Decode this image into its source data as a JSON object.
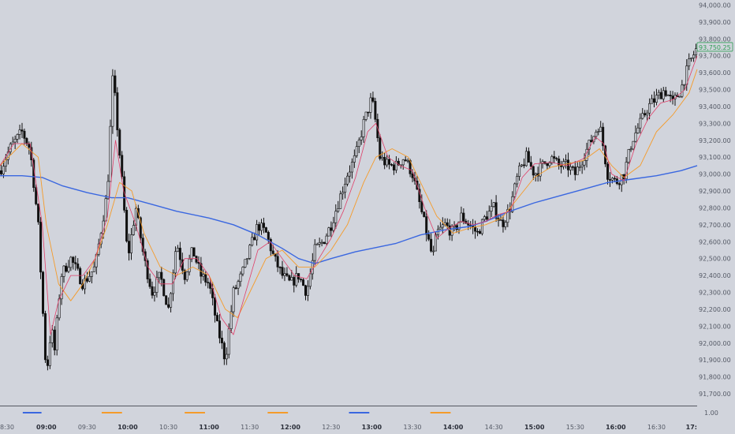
{
  "chart_data": {
    "type": "candlestick",
    "title": "",
    "xlabel": "",
    "ylabel": "",
    "ylim": [
      91630,
      94030
    ],
    "grid": false,
    "legend": "none",
    "price_ticks": [
      "94,000.00",
      "93,900.00",
      "93,800.00",
      "93,700.00",
      "93,600.00",
      "93,500.00",
      "93,400.00",
      "93,300.00",
      "93,200.00",
      "93,100.00",
      "93,000.00",
      "92,900.00",
      "92,800.00",
      "92,700.00",
      "92,600.00",
      "92,500.00",
      "92,400.00",
      "92,300.00",
      "92,200.00",
      "92,100.00",
      "92,000.00",
      "91,900.00",
      "91,800.00",
      "91,700.00"
    ],
    "price_tick_values": [
      94000,
      93900,
      93800,
      93700,
      93600,
      93500,
      93400,
      93300,
      93200,
      93100,
      93000,
      92900,
      92800,
      92700,
      92600,
      92500,
      92400,
      92300,
      92200,
      92100,
      92000,
      91900,
      91800,
      91700
    ],
    "current_price_label": "93,750.25",
    "current_price": 93750.25,
    "time_ticks": [
      {
        "label": "8:30",
        "bold": false
      },
      {
        "label": "09:00",
        "bold": true
      },
      {
        "label": "09:30",
        "bold": false
      },
      {
        "label": "10:00",
        "bold": true
      },
      {
        "label": "10:30",
        "bold": false
      },
      {
        "label": "11:00",
        "bold": true
      },
      {
        "label": "11:30",
        "bold": false
      },
      {
        "label": "12:00",
        "bold": true
      },
      {
        "label": "12:30",
        "bold": false
      },
      {
        "label": "13:00",
        "bold": true
      },
      {
        "label": "13:30",
        "bold": false
      },
      {
        "label": "14:00",
        "bold": true
      },
      {
        "label": "14:30",
        "bold": false
      },
      {
        "label": "15:00",
        "bold": true
      },
      {
        "label": "15:30",
        "bold": false
      },
      {
        "label": "16:00",
        "bold": true
      },
      {
        "label": "16:30",
        "bold": false
      },
      {
        "label": "17:",
        "bold": true
      }
    ],
    "time_tick_positions": [
      8.5,
      9.0,
      9.5,
      10.0,
      10.5,
      11.0,
      11.5,
      12.0,
      12.5,
      13.0,
      13.5,
      14.0,
      14.5,
      15.0,
      15.5,
      16.0,
      16.5,
      17.0
    ],
    "xlim": [
      8.43,
      17.0
    ],
    "secondary_axis_label": "1.00",
    "colors": {
      "background": "#d1d4dc",
      "candle_up": "#d1d4dc",
      "candle_down": "#111111",
      "candle_outline": "#111111",
      "slow_ma": "#3a67e0",
      "mid_ma": "#f59b2a",
      "fast_ma": "#e0406a",
      "price_label": "#2f9e54"
    },
    "indicator_marks": [
      {
        "from": 8.71,
        "to": 8.94,
        "color": "#3a67e0"
      },
      {
        "from": 9.68,
        "to": 9.93,
        "color": "#f59b2a"
      },
      {
        "from": 10.7,
        "to": 10.95,
        "color": "#f59b2a"
      },
      {
        "from": 11.72,
        "to": 11.97,
        "color": "#f59b2a"
      },
      {
        "from": 12.72,
        "to": 12.97,
        "color": "#3a67e0"
      },
      {
        "from": 13.72,
        "to": 13.97,
        "color": "#f59b2a"
      }
    ],
    "price_path": [
      [
        8.43,
        93020
      ],
      [
        8.55,
        93150
      ],
      [
        8.7,
        93250
      ],
      [
        8.8,
        93150
      ],
      [
        8.9,
        92700
      ],
      [
        9.0,
        91800
      ],
      [
        9.06,
        92100
      ],
      [
        9.1,
        91950
      ],
      [
        9.18,
        92400
      ],
      [
        9.3,
        92500
      ],
      [
        9.45,
        92350
      ],
      [
        9.6,
        92450
      ],
      [
        9.75,
        92900
      ],
      [
        9.82,
        93600
      ],
      [
        9.86,
        93350
      ],
      [
        9.94,
        92900
      ],
      [
        10.0,
        92500
      ],
      [
        10.1,
        92800
      ],
      [
        10.2,
        92500
      ],
      [
        10.3,
        92300
      ],
      [
        10.4,
        92400
      ],
      [
        10.5,
        92200
      ],
      [
        10.6,
        92600
      ],
      [
        10.7,
        92400
      ],
      [
        10.8,
        92550
      ],
      [
        10.9,
        92400
      ],
      [
        11.0,
        92350
      ],
      [
        11.1,
        92100
      ],
      [
        11.2,
        91900
      ],
      [
        11.3,
        92300
      ],
      [
        11.4,
        92400
      ],
      [
        11.5,
        92550
      ],
      [
        11.6,
        92700
      ],
      [
        11.7,
        92650
      ],
      [
        11.8,
        92500
      ],
      [
        11.9,
        92400
      ],
      [
        12.0,
        92350
      ],
      [
        12.1,
        92400
      ],
      [
        12.2,
        92300
      ],
      [
        12.3,
        92550
      ],
      [
        12.4,
        92600
      ],
      [
        12.5,
        92700
      ],
      [
        12.6,
        92850
      ],
      [
        12.7,
        93000
      ],
      [
        12.8,
        93100
      ],
      [
        12.9,
        93300
      ],
      [
        13.0,
        93450
      ],
      [
        13.05,
        93300
      ],
      [
        13.1,
        93100
      ],
      [
        13.2,
        93050
      ],
      [
        13.3,
        93050
      ],
      [
        13.4,
        93100
      ],
      [
        13.5,
        93000
      ],
      [
        13.55,
        92900
      ],
      [
        13.65,
        92700
      ],
      [
        13.75,
        92500
      ],
      [
        13.8,
        92650
      ],
      [
        13.9,
        92700
      ],
      [
        14.0,
        92650
      ],
      [
        14.1,
        92750
      ],
      [
        14.2,
        92700
      ],
      [
        14.3,
        92650
      ],
      [
        14.4,
        92750
      ],
      [
        14.5,
        92800
      ],
      [
        14.6,
        92700
      ],
      [
        14.7,
        92800
      ],
      [
        14.8,
        93000
      ],
      [
        14.9,
        93100
      ],
      [
        15.0,
        93000
      ],
      [
        15.1,
        93050
      ],
      [
        15.2,
        93100
      ],
      [
        15.3,
        93050
      ],
      [
        15.4,
        93050
      ],
      [
        15.5,
        93000
      ],
      [
        15.6,
        93100
      ],
      [
        15.7,
        93200
      ],
      [
        15.8,
        93300
      ],
      [
        15.85,
        93150
      ],
      [
        15.9,
        93000
      ],
      [
        16.0,
        92950
      ],
      [
        16.1,
        93000
      ],
      [
        16.2,
        93200
      ],
      [
        16.3,
        93300
      ],
      [
        16.4,
        93400
      ],
      [
        16.5,
        93450
      ],
      [
        16.6,
        93500
      ],
      [
        16.7,
        93420
      ],
      [
        16.8,
        93500
      ],
      [
        16.9,
        93650
      ],
      [
        17.0,
        93750
      ]
    ],
    "series": [
      {
        "name": "",
        "style": "slow",
        "points": [
          [
            8.43,
            92990
          ],
          [
            8.7,
            92990
          ],
          [
            8.95,
            92980
          ],
          [
            9.2,
            92930
          ],
          [
            9.5,
            92890
          ],
          [
            9.8,
            92860
          ],
          [
            10.0,
            92860
          ],
          [
            10.3,
            92820
          ],
          [
            10.6,
            92780
          ],
          [
            11.0,
            92740
          ],
          [
            11.3,
            92700
          ],
          [
            11.6,
            92640
          ],
          [
            11.9,
            92560
          ],
          [
            12.1,
            92500
          ],
          [
            12.3,
            92470
          ],
          [
            12.5,
            92500
          ],
          [
            12.8,
            92540
          ],
          [
            13.0,
            92560
          ],
          [
            13.3,
            92590
          ],
          [
            13.6,
            92640
          ],
          [
            13.9,
            92670
          ],
          [
            14.2,
            92690
          ],
          [
            14.4,
            92720
          ],
          [
            14.7,
            92780
          ],
          [
            15.0,
            92830
          ],
          [
            15.3,
            92870
          ],
          [
            15.6,
            92910
          ],
          [
            15.9,
            92950
          ],
          [
            16.2,
            92970
          ],
          [
            16.5,
            92990
          ],
          [
            16.8,
            93020
          ],
          [
            17.0,
            93050
          ]
        ]
      },
      {
        "name": "",
        "style": "mid",
        "points": [
          [
            8.43,
            93050
          ],
          [
            8.7,
            93180
          ],
          [
            8.9,
            93100
          ],
          [
            9.0,
            92700
          ],
          [
            9.15,
            92350
          ],
          [
            9.3,
            92250
          ],
          [
            9.45,
            92350
          ],
          [
            9.6,
            92500
          ],
          [
            9.75,
            92700
          ],
          [
            9.9,
            92950
          ],
          [
            10.05,
            92900
          ],
          [
            10.2,
            92650
          ],
          [
            10.4,
            92450
          ],
          [
            10.6,
            92400
          ],
          [
            10.8,
            92450
          ],
          [
            11.0,
            92400
          ],
          [
            11.2,
            92200
          ],
          [
            11.35,
            92150
          ],
          [
            11.5,
            92300
          ],
          [
            11.7,
            92500
          ],
          [
            11.9,
            92550
          ],
          [
            12.1,
            92450
          ],
          [
            12.3,
            92450
          ],
          [
            12.5,
            92550
          ],
          [
            12.7,
            92700
          ],
          [
            12.9,
            92950
          ],
          [
            13.05,
            93100
          ],
          [
            13.25,
            93150
          ],
          [
            13.45,
            93100
          ],
          [
            13.6,
            92950
          ],
          [
            13.8,
            92750
          ],
          [
            14.0,
            92650
          ],
          [
            14.2,
            92680
          ],
          [
            14.4,
            92700
          ],
          [
            14.6,
            92740
          ],
          [
            14.8,
            92860
          ],
          [
            15.0,
            92980
          ],
          [
            15.2,
            93040
          ],
          [
            15.4,
            93060
          ],
          [
            15.6,
            93080
          ],
          [
            15.8,
            93150
          ],
          [
            15.95,
            93050
          ],
          [
            16.1,
            92980
          ],
          [
            16.3,
            93050
          ],
          [
            16.5,
            93250
          ],
          [
            16.7,
            93350
          ],
          [
            16.9,
            93480
          ],
          [
            17.0,
            93620
          ]
        ]
      },
      {
        "name": "",
        "style": "fast",
        "points": [
          [
            8.43,
            93050
          ],
          [
            8.6,
            93180
          ],
          [
            8.8,
            93180
          ],
          [
            8.95,
            92700
          ],
          [
            9.05,
            92050
          ],
          [
            9.15,
            92250
          ],
          [
            9.3,
            92400
          ],
          [
            9.45,
            92400
          ],
          [
            9.6,
            92500
          ],
          [
            9.75,
            92750
          ],
          [
            9.85,
            93200
          ],
          [
            9.95,
            92900
          ],
          [
            10.1,
            92700
          ],
          [
            10.25,
            92450
          ],
          [
            10.4,
            92350
          ],
          [
            10.55,
            92350
          ],
          [
            10.7,
            92500
          ],
          [
            10.85,
            92500
          ],
          [
            11.0,
            92400
          ],
          [
            11.15,
            92150
          ],
          [
            11.3,
            92050
          ],
          [
            11.45,
            92300
          ],
          [
            11.6,
            92550
          ],
          [
            11.75,
            92600
          ],
          [
            11.9,
            92500
          ],
          [
            12.05,
            92400
          ],
          [
            12.2,
            92380
          ],
          [
            12.35,
            92500
          ],
          [
            12.5,
            92620
          ],
          [
            12.65,
            92780
          ],
          [
            12.8,
            92980
          ],
          [
            12.95,
            93250
          ],
          [
            13.05,
            93300
          ],
          [
            13.2,
            93100
          ],
          [
            13.35,
            93050
          ],
          [
            13.5,
            93020
          ],
          [
            13.65,
            92800
          ],
          [
            13.8,
            92620
          ],
          [
            13.95,
            92680
          ],
          [
            14.1,
            92720
          ],
          [
            14.25,
            92700
          ],
          [
            14.4,
            92720
          ],
          [
            14.55,
            92760
          ],
          [
            14.7,
            92780
          ],
          [
            14.85,
            92980
          ],
          [
            15.0,
            93060
          ],
          [
            15.2,
            93070
          ],
          [
            15.4,
            93050
          ],
          [
            15.6,
            93090
          ],
          [
            15.75,
            93220
          ],
          [
            15.85,
            93180
          ],
          [
            15.95,
            93000
          ],
          [
            16.1,
            92960
          ],
          [
            16.25,
            93180
          ],
          [
            16.4,
            93330
          ],
          [
            16.55,
            93420
          ],
          [
            16.7,
            93440
          ],
          [
            16.85,
            93500
          ],
          [
            17.0,
            93700
          ]
        ]
      }
    ]
  }
}
